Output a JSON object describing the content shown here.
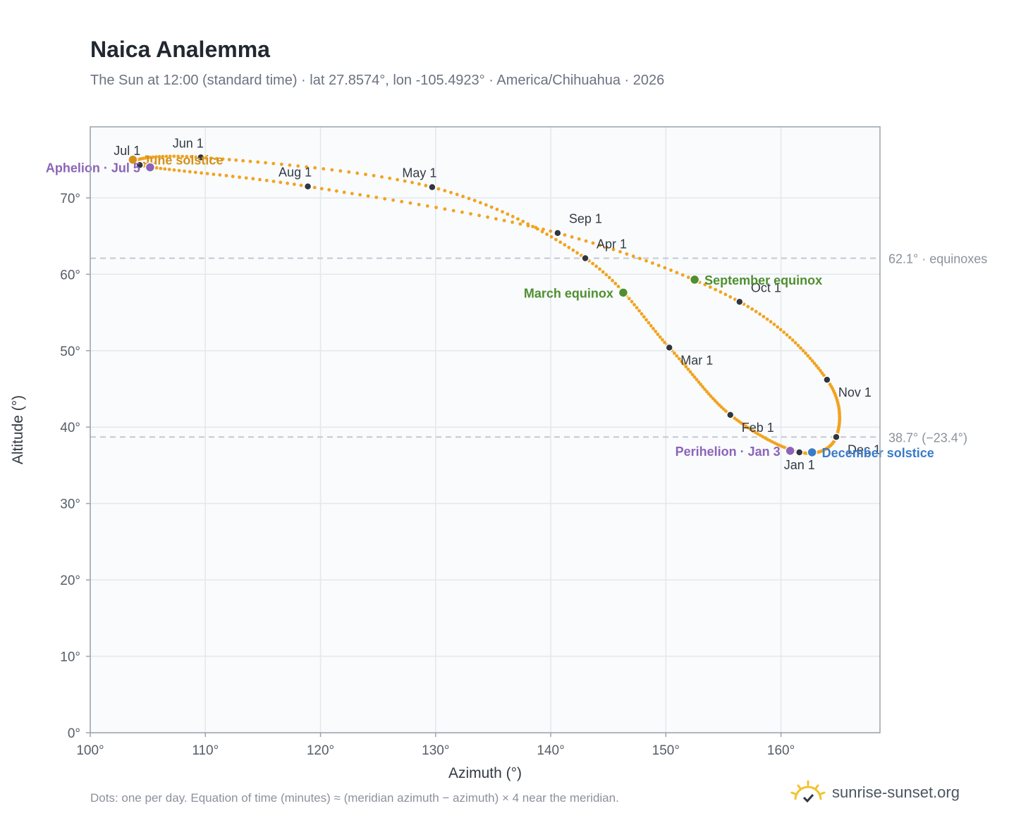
{
  "header": {
    "title": "Naica Analemma",
    "subtitle": "The Sun at 12:00 (standard time) · lat 27.8574°, lon -105.4923° · America/Chihuahua · 2026"
  },
  "footer": {
    "footnote": "Dots: one per day. Equation of time (minutes) ≈ (meridian azimuth − azimuth) × 4 near the meridian.",
    "brand": "sunrise-sunset.org",
    "brand_icon": "sun-logo-icon"
  },
  "chart_data": {
    "type": "scatter",
    "xlabel": "Azimuth (°)",
    "ylabel": "Altitude (°)",
    "xlim": [
      100,
      168.6
    ],
    "ylim": [
      0,
      79.3
    ],
    "x_ticks": [
      "100°",
      "110°",
      "120°",
      "130°",
      "140°",
      "150°",
      "160°"
    ],
    "y_ticks": [
      "0°",
      "10°",
      "20°",
      "30°",
      "40°",
      "50°",
      "60°",
      "70°"
    ],
    "grid": true,
    "colors": {
      "path": "#f2a31e",
      "month_marker": "#2f3640",
      "equinox": "#4f8f2f",
      "june_solstice": "#d4911a",
      "december_solstice": "#3a7bc8",
      "apsis": "#8b64b8",
      "reference_line": "#c3cad3"
    },
    "path_order": [
      "Jan 1",
      "Feb 1",
      "Mar 1",
      "Apr 1",
      "May 1",
      "Jun 1",
      "Jul 1",
      "Aug 1",
      "Sep 1",
      "Oct 1",
      "Nov 1",
      "Dec 1",
      "Jan 1"
    ],
    "month_markers": [
      {
        "label": "Jan 1",
        "az": 161.6,
        "alt": 36.7,
        "anchor": "below"
      },
      {
        "label": "Feb 1",
        "az": 155.6,
        "alt": 41.6,
        "anchor": "below-right"
      },
      {
        "label": "Mar 1",
        "az": 150.3,
        "alt": 50.4,
        "anchor": "below-right"
      },
      {
        "label": "Apr 1",
        "az": 143.0,
        "alt": 62.1,
        "anchor": "above-right"
      },
      {
        "label": "May 1",
        "az": 129.7,
        "alt": 71.4,
        "anchor": "above-left"
      },
      {
        "label": "Jun 1",
        "az": 109.6,
        "alt": 75.3,
        "anchor": "above-left"
      },
      {
        "label": "Jul 1",
        "az": 104.3,
        "alt": 74.3,
        "anchor": "above-left"
      },
      {
        "label": "Aug 1",
        "az": 118.9,
        "alt": 71.5,
        "anchor": "above-left"
      },
      {
        "label": "Sep 1",
        "az": 140.6,
        "alt": 65.4,
        "anchor": "above-right"
      },
      {
        "label": "Oct 1",
        "az": 156.4,
        "alt": 56.4,
        "anchor": "above-right"
      },
      {
        "label": "Nov 1",
        "az": 164.0,
        "alt": 46.2,
        "anchor": "below-right"
      },
      {
        "label": "Dec 1",
        "az": 164.8,
        "alt": 38.7,
        "anchor": "below-right"
      }
    ],
    "events": [
      {
        "label": "March equinox",
        "az": 146.3,
        "alt": 57.6,
        "color_key": "equinox",
        "anchor": "left"
      },
      {
        "label": "September equinox",
        "az": 152.5,
        "alt": 59.3,
        "color_key": "equinox",
        "anchor": "right"
      },
      {
        "label": "June solstice",
        "az": 103.7,
        "alt": 75.0,
        "color_key": "june_solstice",
        "anchor": "right"
      },
      {
        "label": "December solstice",
        "az": 162.7,
        "alt": 36.7,
        "color_key": "december_solstice",
        "anchor": "right"
      },
      {
        "label": "Aphelion · Jul 5",
        "az": 105.2,
        "alt": 74.0,
        "color_key": "apsis",
        "anchor": "left"
      },
      {
        "label": "Perihelion · Jan 3",
        "az": 160.8,
        "alt": 36.9,
        "color_key": "apsis",
        "anchor": "left"
      }
    ],
    "reference_lines": [
      {
        "alt": 62.1,
        "label": "62.1° · equinoxes"
      },
      {
        "alt": 38.7,
        "label": "38.7° (−23.4°)"
      }
    ]
  }
}
